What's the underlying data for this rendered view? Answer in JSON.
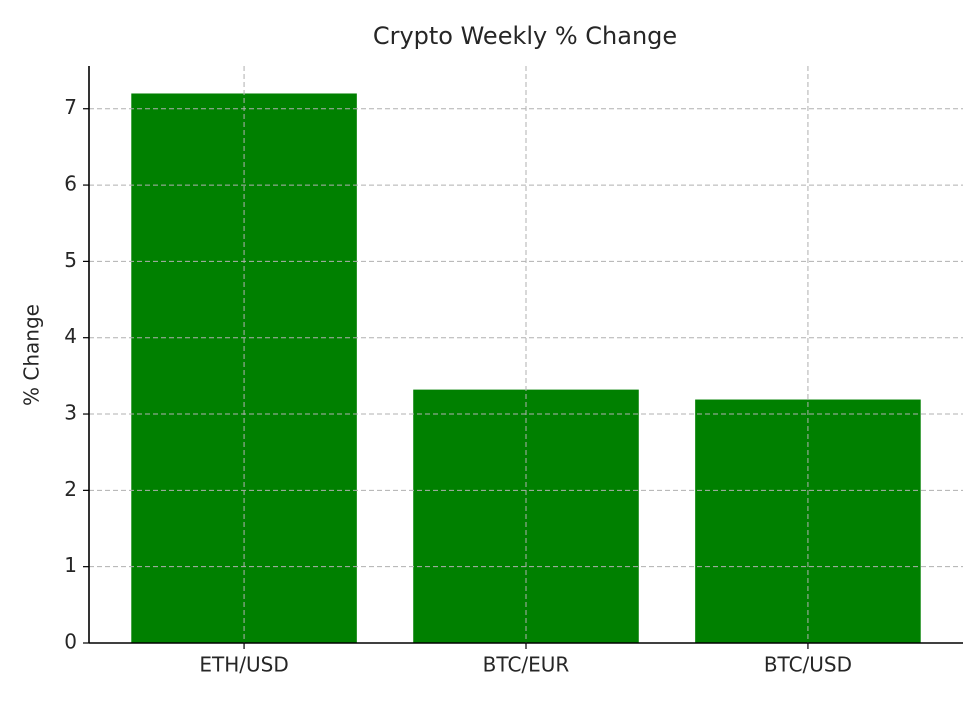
{
  "chart_data": {
    "type": "bar",
    "title": "Crypto Weekly % Change",
    "y_label": "% Change",
    "categories": [
      "ETH/USD",
      "BTC/EUR",
      "BTC/USD"
    ],
    "values": [
      7.2,
      3.32,
      3.19
    ],
    "color": "#008000",
    "ylim": [
      0,
      7.56
    ],
    "yticks": [
      0,
      1,
      2,
      3,
      4,
      5,
      6,
      7
    ],
    "grid": true
  }
}
